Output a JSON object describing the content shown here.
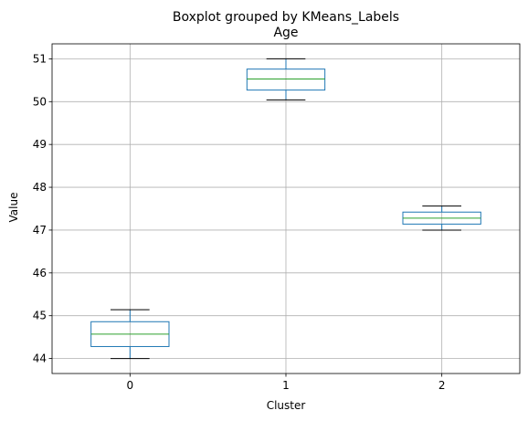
{
  "chart_data": {
    "type": "box",
    "suptitle": "Boxplot grouped by KMeans_Labels",
    "title": "Age",
    "xlabel": "Cluster",
    "ylabel": "Value",
    "categories": [
      "0",
      "1",
      "2"
    ],
    "boxes": [
      {
        "category": "0",
        "whislo": 44.0,
        "q1": 44.28,
        "med": 44.57,
        "q3": 44.86,
        "whishi": 45.14
      },
      {
        "category": "1",
        "whislo": 50.04,
        "q1": 50.27,
        "med": 50.53,
        "q3": 50.76,
        "whishi": 51.0
      },
      {
        "category": "2",
        "whislo": 47.0,
        "q1": 47.14,
        "med": 47.28,
        "q3": 47.42,
        "whishi": 47.56
      }
    ],
    "ylim": [
      43.65,
      51.35
    ],
    "yticks": [
      44,
      45,
      46,
      47,
      48,
      49,
      50,
      51
    ],
    "grid": true,
    "colors": {
      "box": "#1f77b4",
      "median": "#2ca02c",
      "whisker_cap": "#000000",
      "grid": "#b0b0b0"
    }
  }
}
